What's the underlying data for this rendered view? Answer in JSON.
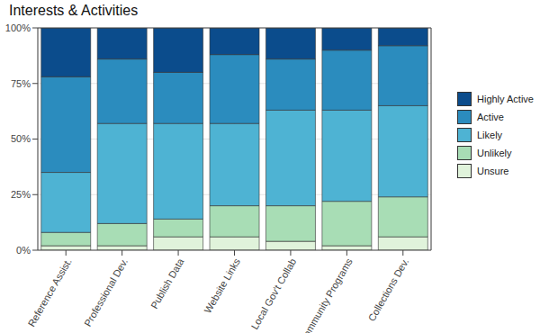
{
  "chart_data": {
    "type": "bar",
    "title": "Interests & Activities",
    "stacked": true,
    "grid": true,
    "legend": "right",
    "categories": [
      "Reference Assist.",
      "Professional Dev.",
      "Publish Data",
      "Website Links",
      "Local Gov't Collab",
      "Community Programs",
      "Collections Dev."
    ],
    "series": [
      {
        "name": "Unsure",
        "color": "#e0f3db",
        "values": [
          2,
          2,
          6,
          6,
          4,
          2,
          6
        ]
      },
      {
        "name": "Unlikely",
        "color": "#a8ddb5",
        "values": [
          6,
          10,
          8,
          14,
          16,
          20,
          18
        ]
      },
      {
        "name": "Likely",
        "color": "#4eb3d3",
        "values": [
          27,
          45,
          43,
          37,
          43,
          41,
          41
        ]
      },
      {
        "name": "Active",
        "color": "#2b8cbe",
        "values": [
          43,
          29,
          23,
          31,
          23,
          27,
          27
        ]
      },
      {
        "name": "Highly Active",
        "color": "#0b4c8c",
        "values": [
          22,
          14,
          20,
          12,
          14,
          10,
          8
        ]
      }
    ],
    "ylim": [
      0,
      100
    ],
    "yticks": [
      {
        "value": 0,
        "label": "0%"
      },
      {
        "value": 25,
        "label": "25%"
      },
      {
        "value": 50,
        "label": "50%"
      },
      {
        "value": 75,
        "label": "75%"
      },
      {
        "value": 100,
        "label": "100%"
      }
    ]
  }
}
